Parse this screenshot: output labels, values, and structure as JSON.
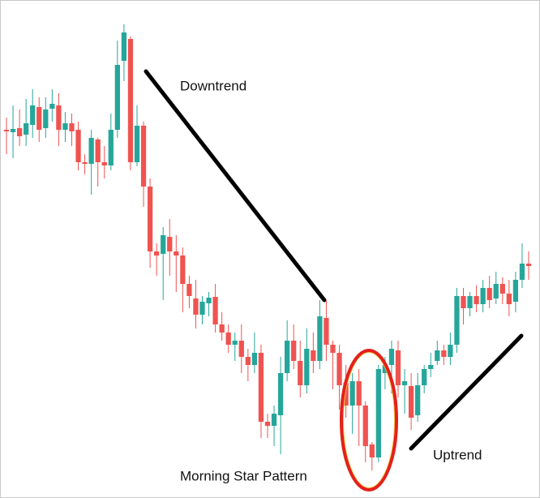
{
  "chart_data": {
    "type": "candlestick",
    "annotations": [
      "Downtrend",
      "Uptrend",
      "Morning Star Pattern"
    ],
    "up_color": "#26a69a",
    "down_color": "#ef5350",
    "open": [
      440,
      437,
      442,
      434,
      446,
      468,
      442,
      466,
      470,
      440,
      448,
      440,
      400,
      398,
      428,
      400,
      396,
      440,
      525,
      552,
      400,
      445,
      370,
      290,
      287,
      308,
      290,
      285,
      250,
      232,
      212,
      226,
      234,
      200,
      190,
      175,
      180,
      160,
      150,
      165,
      80,
      75,
      88,
      140,
      180,
      155,
      125,
      168,
      155,
      208,
      175,
      165,
      128,
      100,
      130,
      100,
      52,
      36,
      140,
      150,
      168,
      125,
      124,
      88,
      125,
      145,
      155,
      168,
      160,
      175,
      235,
      220,
      235,
      225,
      245,
      232,
      250,
      238,
      228,
      255,
      275
    ],
    "high": [
      455,
      470,
      465,
      478,
      490,
      480,
      480,
      490,
      485,
      462,
      460,
      450,
      410,
      440,
      430,
      420,
      460,
      550,
      570,
      555,
      470,
      450,
      380,
      300,
      320,
      330,
      310,
      295,
      260,
      255,
      235,
      240,
      250,
      215,
      200,
      190,
      200,
      170,
      190,
      175,
      90,
      100,
      160,
      205,
      200,
      180,
      195,
      190,
      230,
      230,
      180,
      175,
      150,
      140,
      145,
      105,
      55,
      150,
      160,
      180,
      180,
      145,
      140,
      140,
      150,
      165,
      180,
      175,
      190,
      245,
      245,
      240,
      248,
      255,
      260,
      265,
      258,
      255,
      265,
      300,
      290
    ],
    "low": [
      410,
      405,
      420,
      420,
      430,
      425,
      430,
      450,
      420,
      425,
      420,
      390,
      385,
      360,
      370,
      380,
      390,
      430,
      500,
      390,
      395,
      345,
      270,
      260,
      230,
      260,
      240,
      215,
      220,
      195,
      200,
      210,
      190,
      180,
      165,
      155,
      140,
      130,
      140,
      60,
      60,
      50,
      40,
      130,
      145,
      110,
      115,
      140,
      145,
      155,
      120,
      95,
      85,
      65,
      50,
      30,
      20,
      30,
      120,
      115,
      110,
      90,
      70,
      80,
      115,
      135,
      150,
      150,
      150,
      165,
      200,
      210,
      215,
      215,
      220,
      225,
      225,
      210,
      215,
      245,
      255
    ],
    "close": [
      438,
      441,
      432,
      448,
      470,
      440,
      465,
      472,
      440,
      448,
      438,
      400,
      398,
      430,
      400,
      396,
      440,
      520,
      560,
      400,
      445,
      370,
      290,
      285,
      310,
      290,
      285,
      250,
      235,
      212,
      228,
      233,
      200,
      190,
      175,
      180,
      160,
      150,
      165,
      80,
      75,
      90,
      140,
      180,
      155,
      125,
      170,
      155,
      210,
      175,
      165,
      125,
      100,
      130,
      100,
      50,
      36,
      145,
      150,
      170,
      125,
      130,
      85,
      125,
      145,
      150,
      168,
      160,
      175,
      235,
      220,
      235,
      225,
      245,
      230,
      250,
      238,
      225,
      255,
      275,
      272
    ]
  }
}
